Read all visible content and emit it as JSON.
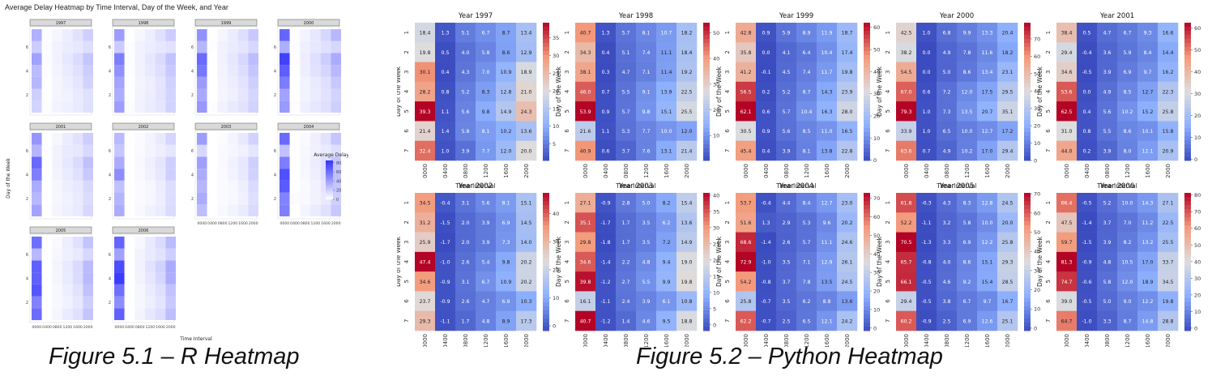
{
  "figure_r": {
    "title": "Average Delay Heatmap by Time Interval, Day of the Week, and Year",
    "caption": "Figure 5.1 – R Heatmap"
  },
  "figure_py": {
    "caption": "Figure 5.2 – Python Heatmap"
  },
  "chart_data": [
    {
      "type": "heatmap",
      "title": "Average Delay Heatmap by Time Interval, Day of the Week, and Year",
      "xlabel": "Time Interval",
      "ylabel": "Day of the Week",
      "x_ticks": [
        "0000",
        "0400",
        "0800",
        "1200",
        "1600",
        "2000"
      ],
      "y_ticks": [
        "2",
        "4",
        "6"
      ],
      "legend": {
        "title": "Average Delay",
        "ticks": [
          "80",
          "60",
          "40",
          "20",
          "0"
        ],
        "position": "right"
      },
      "color_low": "#ffffff",
      "color_high": "#3333ff",
      "scale_max": 85,
      "facet_titles": [
        "1997",
        "1998",
        "1999",
        "2000",
        "2001",
        "2002",
        "2003",
        "2004",
        "2005",
        "2006"
      ],
      "years": [
        [
          [
            18.4,
            1.3,
            5.1,
            6.7,
            8.7,
            13.4
          ],
          [
            19.8,
            0.5,
            4.0,
            5.8,
            8.6,
            12.9
          ],
          [
            30.1,
            0.4,
            4.3,
            7.0,
            10.9,
            18.9
          ],
          [
            28.2,
            0.8,
            5.2,
            8.3,
            12.8,
            21.0
          ],
          [
            39.3,
            1.1,
            5.6,
            9.8,
            14.9,
            24.3
          ],
          [
            21.4,
            1.4,
            5.8,
            8.1,
            10.2,
            13.6
          ],
          [
            32.4,
            1.0,
            3.9,
            7.7,
            12.0,
            20.0
          ]
        ],
        [
          [
            40.7,
            1.3,
            5.7,
            8.1,
            10.7,
            18.2
          ],
          [
            34.3,
            0.4,
            5.1,
            7.4,
            11.1,
            18.4
          ],
          [
            38.1,
            0.3,
            4.7,
            7.1,
            11.4,
            19.2
          ],
          [
            46.0,
            0.7,
            5.5,
            9.1,
            13.9,
            22.5
          ],
          [
            53.9,
            0.9,
            5.7,
            9.8,
            15.1,
            25.5
          ],
          [
            21.6,
            1.1,
            5.3,
            7.7,
            10.0,
            12.0
          ],
          [
            40.9,
            0.6,
            3.7,
            7.6,
            13.1,
            21.4
          ]
        ],
        [
          [
            42.8,
            0.9,
            5.9,
            8.9,
            11.9,
            18.7
          ],
          [
            35.8,
            -0.0,
            4.1,
            6.4,
            10.4,
            17.4
          ],
          [
            41.2,
            -0.1,
            4.5,
            7.4,
            11.7,
            19.8
          ],
          [
            56.5,
            0.2,
            5.2,
            8.7,
            14.3,
            23.9
          ],
          [
            62.1,
            0.6,
            5.7,
            10.4,
            16.3,
            28.0
          ],
          [
            30.5,
            0.9,
            5.6,
            8.5,
            11.0,
            16.5
          ],
          [
            45.4,
            0.4,
            3.9,
            8.1,
            13.8,
            22.8
          ]
        ],
        [
          [
            42.5,
            1.0,
            6.8,
            9.9,
            13.3,
            20.4
          ],
          [
            38.2,
            -0.0,
            4.9,
            7.8,
            11.6,
            18.2
          ],
          [
            54.5,
            0.0,
            5.0,
            8.6,
            13.4,
            23.1
          ],
          [
            67.0,
            0.6,
            7.2,
            12.0,
            17.5,
            29.5
          ],
          [
            79.3,
            1.0,
            7.3,
            13.5,
            20.7,
            35.1
          ],
          [
            33.9,
            1.0,
            6.5,
            10.0,
            12.7,
            17.2
          ],
          [
            63.6,
            0.7,
            4.9,
            10.2,
            17.0,
            29.4
          ]
        ],
        [
          [
            38.4,
            0.5,
            4.7,
            6.7,
            9.3,
            16.6
          ],
          [
            29.4,
            -0.4,
            3.6,
            5.9,
            8.4,
            14.4
          ],
          [
            34.6,
            -0.5,
            3.9,
            6.9,
            9.7,
            16.2
          ],
          [
            53.6,
            0.0,
            4.9,
            8.5,
            12.7,
            22.3
          ],
          [
            62.5,
            0.4,
            5.6,
            10.2,
            15.2,
            25.8
          ],
          [
            31.0,
            0.8,
            5.5,
            8.6,
            10.1,
            15.8
          ],
          [
            44.0,
            0.2,
            3.9,
            8.0,
            12.1,
            20.9
          ]
        ],
        [
          [
            34.5,
            -0.4,
            3.1,
            5.6,
            8.1,
            15.1
          ],
          [
            31.2,
            -1.5,
            2.0,
            3.9,
            6.9,
            14.5
          ],
          [
            25.9,
            -1.7,
            2.0,
            3.9,
            7.3,
            14.0
          ],
          [
            47.4,
            -1.0,
            2.6,
            5.4,
            9.8,
            20.2
          ],
          [
            34.6,
            -0.9,
            3.1,
            6.7,
            10.9,
            20.2
          ],
          [
            23.7,
            -0.9,
            2.6,
            4.7,
            6.9,
            10.3
          ],
          [
            29.3,
            -1.1,
            1.7,
            4.8,
            8.9,
            17.3
          ]
        ],
        [
          [
            27.1,
            -0.9,
            2.8,
            5.0,
            8.2,
            15.4
          ],
          [
            35.1,
            -1.7,
            1.7,
            3.5,
            6.2,
            13.6
          ],
          [
            29.8,
            -1.8,
            1.7,
            3.5,
            7.2,
            14.9
          ],
          [
            34.6,
            -1.4,
            2.2,
            4.8,
            9.4,
            19.0
          ],
          [
            39.8,
            -1.2,
            2.7,
            5.5,
            9.9,
            19.8
          ],
          [
            16.1,
            -1.1,
            2.4,
            3.9,
            6.1,
            10.8
          ],
          [
            40.7,
            -1.2,
            1.4,
            4.6,
            9.5,
            18.8
          ]
        ],
        [
          [
            53.7,
            -0.4,
            4.4,
            8.4,
            12.7,
            23.0
          ],
          [
            51.6,
            1.3,
            2.9,
            5.3,
            9.6,
            20.2
          ],
          [
            68.6,
            -1.4,
            2.6,
            5.7,
            11.1,
            24.6
          ],
          [
            72.9,
            -1.0,
            3.5,
            7.1,
            12.9,
            26.1
          ],
          [
            54.2,
            -0.8,
            3.7,
            7.8,
            13.5,
            24.5
          ],
          [
            25.8,
            -0.7,
            3.5,
            6.2,
            8.8,
            13.6
          ],
          [
            62.2,
            -0.7,
            2.5,
            6.5,
            12.1,
            24.2
          ]
        ],
        [
          [
            61.8,
            -0.3,
            4.3,
            8.3,
            12.8,
            24.5
          ],
          [
            52.2,
            -1.1,
            3.2,
            5.8,
            10.0,
            20.0
          ],
          [
            70.5,
            -1.3,
            3.3,
            6.9,
            12.2,
            25.8
          ],
          [
            65.7,
            -0.8,
            4.0,
            8.6,
            15.1,
            29.3
          ],
          [
            66.1,
            -0.5,
            4.6,
            9.2,
            15.4,
            28.5
          ],
          [
            29.4,
            -0.5,
            3.8,
            6.7,
            9.7,
            16.7
          ],
          [
            60.2,
            -0.9,
            2.5,
            6.9,
            12.6,
            25.1
          ]
        ],
        [
          [
            66.4,
            -0.5,
            5.2,
            10.0,
            14.3,
            27.1
          ],
          [
            47.5,
            -1.4,
            3.7,
            7.0,
            11.2,
            22.5
          ],
          [
            59.7,
            -1.5,
            3.9,
            8.2,
            13.2,
            25.5
          ],
          [
            81.3,
            -0.9,
            4.8,
            10.5,
            17.0,
            33.7
          ],
          [
            74.7,
            -0.6,
            5.8,
            12.0,
            18.9,
            34.5
          ],
          [
            39.0,
            -0.5,
            5.0,
            9.0,
            12.2,
            19.8
          ],
          [
            64.7,
            -1.0,
            3.3,
            8.7,
            14.8,
            28.8
          ]
        ]
      ]
    },
    {
      "type": "heatmap",
      "xlabel": "Time Interval",
      "ylabel": "Day of the Week",
      "x_ticks": [
        "0000",
        "0400",
        "0800",
        "1200",
        "1600",
        "2000"
      ],
      "y_ticks": [
        "1",
        "2",
        "3",
        "4",
        "5",
        "6",
        "7"
      ],
      "colormap": "coolwarm",
      "colormap_stops": [
        "#3b4cc0",
        "#8db0fe",
        "#dddddd",
        "#f49a7b",
        "#b40426"
      ],
      "panels": [
        {
          "title": "Year 1997",
          "year_index": 0,
          "vmin": 0.3,
          "vmax": 39.3,
          "cbar_ticks": [
            5,
            10,
            15,
            20,
            25,
            30,
            35
          ]
        },
        {
          "title": "Year 1998",
          "year_index": 1,
          "vmin": 0.3,
          "vmax": 53.9,
          "cbar_ticks": [
            10,
            20,
            30,
            40,
            50
          ]
        },
        {
          "title": "Year 1999",
          "year_index": 2,
          "vmin": -0.1,
          "vmax": 62.1,
          "cbar_ticks": [
            0,
            10,
            20,
            30,
            40,
            50,
            60
          ]
        },
        {
          "title": "Year 2000",
          "year_index": 3,
          "vmin": -0.0,
          "vmax": 79.3,
          "cbar_ticks": [
            0,
            10,
            20,
            30,
            40,
            50,
            60,
            70
          ]
        },
        {
          "title": "Year 2001",
          "year_index": 4,
          "vmin": -0.5,
          "vmax": 62.5,
          "cbar_ticks": [
            0,
            10,
            20,
            30,
            40,
            50,
            60
          ]
        },
        {
          "title": "Year 2002",
          "year_index": 5,
          "vmin": -1.7,
          "vmax": 47.4,
          "cbar_ticks": [
            0,
            10,
            20,
            30,
            40
          ]
        },
        {
          "title": "Year 2003",
          "year_index": 6,
          "vmin": -1.8,
          "vmax": 40.7,
          "cbar_ticks": [
            0,
            5,
            10,
            15,
            20,
            25,
            30,
            35,
            40
          ]
        },
        {
          "title": "Year 2004",
          "year_index": 7,
          "vmin": -1.4,
          "vmax": 72.9,
          "cbar_ticks": [
            0,
            10,
            20,
            30,
            40,
            50,
            60,
            70
          ]
        },
        {
          "title": "Year 2005",
          "year_index": 8,
          "vmin": -1.3,
          "vmax": 70.5,
          "cbar_ticks": [
            0,
            10,
            20,
            30,
            40,
            50,
            60,
            70
          ]
        },
        {
          "title": "Year 2006",
          "year_index": 9,
          "vmin": -1.5,
          "vmax": 81.3,
          "cbar_ticks": [
            0,
            10,
            20,
            30,
            40,
            50,
            60,
            70,
            80
          ]
        }
      ]
    }
  ]
}
